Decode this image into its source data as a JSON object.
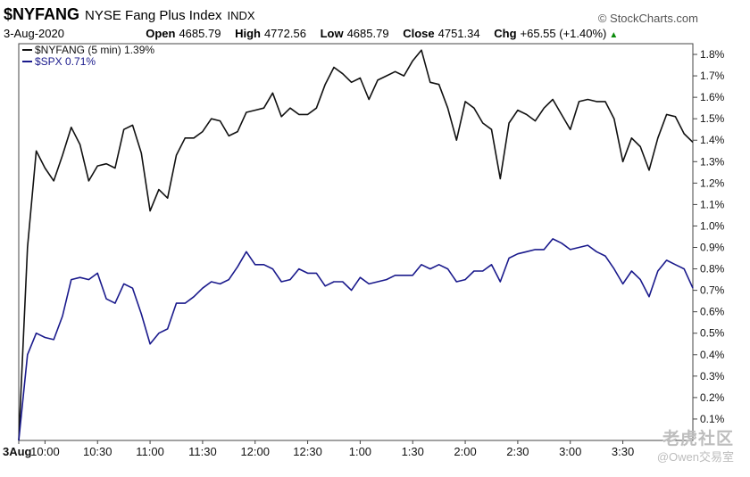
{
  "header": {
    "symbol": "$NYFANG",
    "index_name": "NYSE Fang Plus Index",
    "exchange": "INDX",
    "source": "© StockCharts.com",
    "date": "3-Aug-2020",
    "stats": [
      {
        "label": "Open",
        "value": "4685.79"
      },
      {
        "label": "High",
        "value": "4772.56"
      },
      {
        "label": "Low",
        "value": "4685.79"
      },
      {
        "label": "Close",
        "value": "4751.34"
      },
      {
        "label": "Chg",
        "value": "+65.55 (+1.40%)"
      }
    ],
    "up_color": "#0a8a0a"
  },
  "watermark": {
    "line1": "老虎社区",
    "line2": "@Owen交易室"
  },
  "chart_data": {
    "type": "line",
    "legend_position": "top-left",
    "grid": false,
    "x_tick_labels": [
      "3Aug",
      "10:00",
      "10:30",
      "11:00",
      "11:30",
      "12:00",
      "12:30",
      "1:00",
      "1:30",
      "2:00",
      "2:30",
      "3:00",
      "3:30"
    ],
    "y_tick_labels": [
      "0.1%",
      "0.2%",
      "0.3%",
      "0.4%",
      "0.5%",
      "0.6%",
      "0.7%",
      "0.8%",
      "0.9%",
      "1.0%",
      "1.1%",
      "1.2%",
      "1.3%",
      "1.4%",
      "1.5%",
      "1.6%",
      "1.7%",
      "1.8%"
    ],
    "ylim": [
      0.0,
      1.85
    ],
    "x_range": [
      0,
      77
    ],
    "series": [
      {
        "name": "$NYFANG (5 min) 1.39%",
        "color": "#111111",
        "values": [
          0.0,
          0.9,
          1.35,
          1.27,
          1.21,
          1.33,
          1.46,
          1.38,
          1.21,
          1.28,
          1.29,
          1.27,
          1.45,
          1.47,
          1.34,
          1.07,
          1.17,
          1.13,
          1.33,
          1.41,
          1.41,
          1.44,
          1.5,
          1.49,
          1.42,
          1.44,
          1.53,
          1.54,
          1.55,
          1.62,
          1.51,
          1.55,
          1.52,
          1.52,
          1.55,
          1.66,
          1.74,
          1.71,
          1.67,
          1.69,
          1.59,
          1.68,
          1.7,
          1.72,
          1.7,
          1.77,
          1.82,
          1.67,
          1.66,
          1.55,
          1.4,
          1.58,
          1.55,
          1.48,
          1.45,
          1.22,
          1.48,
          1.54,
          1.52,
          1.49,
          1.55,
          1.59,
          1.52,
          1.45,
          1.58,
          1.59,
          1.58,
          1.58,
          1.5,
          1.3,
          1.41,
          1.37,
          1.26,
          1.41,
          1.52,
          1.51,
          1.43,
          1.39
        ]
      },
      {
        "name": "$SPX 0.71%",
        "color": "#1a1a8c",
        "values": [
          0.0,
          0.4,
          0.5,
          0.48,
          0.47,
          0.58,
          0.75,
          0.76,
          0.75,
          0.78,
          0.66,
          0.64,
          0.73,
          0.71,
          0.59,
          0.45,
          0.5,
          0.52,
          0.64,
          0.64,
          0.67,
          0.71,
          0.74,
          0.73,
          0.75,
          0.81,
          0.88,
          0.82,
          0.82,
          0.8,
          0.74,
          0.75,
          0.8,
          0.78,
          0.78,
          0.72,
          0.74,
          0.74,
          0.7,
          0.76,
          0.73,
          0.74,
          0.75,
          0.77,
          0.77,
          0.77,
          0.82,
          0.8,
          0.82,
          0.8,
          0.74,
          0.75,
          0.79,
          0.79,
          0.82,
          0.74,
          0.85,
          0.87,
          0.88,
          0.89,
          0.89,
          0.94,
          0.92,
          0.89,
          0.9,
          0.91,
          0.88,
          0.86,
          0.8,
          0.73,
          0.79,
          0.75,
          0.67,
          0.79,
          0.84,
          0.82,
          0.8,
          0.71
        ]
      }
    ]
  }
}
